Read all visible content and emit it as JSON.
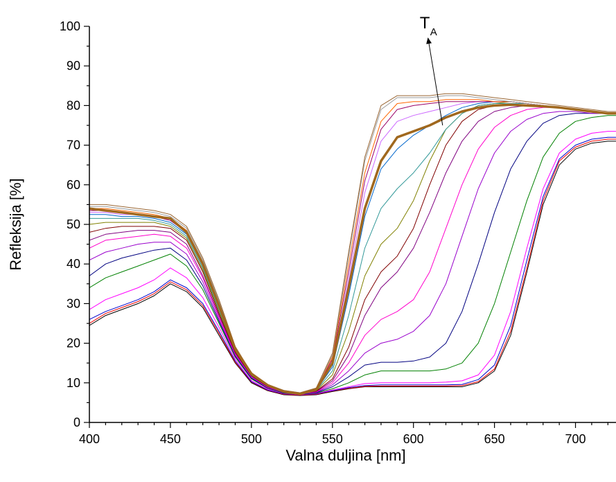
{
  "chart_data": {
    "type": "line",
    "xlabel": "Valna duljina [nm]",
    "ylabel": "Refleksija [%]",
    "xlim": [
      400,
      725
    ],
    "ylim": [
      0,
      100
    ],
    "x_ticks": [
      400,
      450,
      500,
      550,
      600,
      650,
      700
    ],
    "y_ticks": [
      0,
      10,
      20,
      30,
      40,
      50,
      60,
      70,
      80,
      90,
      100
    ],
    "x_minor_step": 10,
    "y_minor_step": 5,
    "grid": false,
    "legend": "none",
    "annotation": {
      "text_main": "T",
      "text_sub": "A",
      "arrow_from": [
        618,
        75
      ],
      "arrow_to": [
        609,
        97
      ]
    },
    "x": [
      400,
      410,
      420,
      430,
      440,
      450,
      460,
      470,
      480,
      490,
      500,
      510,
      520,
      530,
      540,
      550,
      560,
      570,
      580,
      590,
      600,
      610,
      620,
      630,
      640,
      650,
      660,
      670,
      680,
      690,
      700,
      710,
      720,
      725
    ],
    "highlight_index": 16,
    "series": [
      {
        "color": "#000000",
        "width": 1,
        "values": [
          24.5,
          27,
          28.5,
          30,
          32,
          35,
          33,
          29,
          22,
          15,
          10,
          8,
          7,
          6.8,
          7,
          7.8,
          8.5,
          9,
          9,
          9,
          9,
          9,
          9,
          9,
          10,
          13,
          22,
          38,
          55,
          65,
          69,
          70.5,
          71,
          71
        ]
      },
      {
        "color": "#ff0000",
        "width": 1,
        "values": [
          25,
          27.5,
          29,
          30.5,
          32.5,
          35.5,
          33.5,
          29.5,
          22.5,
          15.2,
          10.2,
          8.1,
          7.1,
          6.9,
          7.1,
          7.9,
          8.6,
          9.1,
          9.2,
          9.2,
          9.2,
          9.2,
          9.2,
          9.3,
          10.3,
          13.5,
          23,
          39,
          56,
          66,
          69.5,
          71,
          71.5,
          71.5
        ]
      },
      {
        "color": "#0000cc",
        "width": 1,
        "values": [
          26,
          28,
          29.5,
          31,
          33,
          36,
          34,
          30,
          23,
          15.5,
          10.3,
          8.2,
          7.2,
          7,
          7.2,
          8,
          8.8,
          9.3,
          9.5,
          9.5,
          9.5,
          9.5,
          9.5,
          9.6,
          10.8,
          14.5,
          24.5,
          41,
          57,
          66.5,
          70,
          71.5,
          72,
          72
        ]
      },
      {
        "color": "#ff00ff",
        "width": 1,
        "values": [
          28.5,
          31,
          32.5,
          34,
          36,
          39,
          36.5,
          31.5,
          24,
          16,
          10.6,
          8.4,
          7.3,
          7,
          7.3,
          8.2,
          9,
          9.8,
          10,
          10,
          10,
          10,
          10.2,
          10.5,
          12,
          17,
          28,
          44,
          59,
          68,
          71.5,
          73,
          73.5,
          73.5
        ]
      },
      {
        "color": "#008000",
        "width": 1,
        "values": [
          34,
          36.5,
          38,
          39.5,
          41,
          42.5,
          39.5,
          33.5,
          25,
          16.5,
          11,
          8.6,
          7.4,
          7.1,
          7.4,
          8.5,
          10,
          12,
          13,
          13,
          13,
          13,
          13.5,
          15,
          20,
          30,
          43,
          56,
          67,
          73,
          76,
          77,
          77.5,
          77.5
        ]
      },
      {
        "color": "#000080",
        "width": 1,
        "values": [
          37,
          40,
          41.5,
          42.5,
          43.5,
          44,
          41,
          34.5,
          25.5,
          16.8,
          11.2,
          8.7,
          7.5,
          7.1,
          7.5,
          9,
          11.5,
          14.5,
          15.2,
          15.2,
          15.5,
          16.5,
          20,
          28,
          40,
          53,
          64,
          71,
          75.5,
          77.5,
          78,
          78,
          78,
          78
        ]
      },
      {
        "color": "#9900cc",
        "width": 1,
        "values": [
          41,
          43,
          44,
          45,
          45.5,
          45.5,
          42.5,
          35.5,
          26,
          17,
          11.4,
          8.8,
          7.6,
          7.2,
          7.6,
          9.5,
          13,
          17.5,
          20,
          21,
          23,
          27,
          35,
          47,
          59,
          68,
          73.5,
          76.5,
          78,
          78.5,
          78.5,
          78,
          78,
          78
        ]
      },
      {
        "color": "#ff00cc",
        "width": 1,
        "values": [
          44,
          46,
          46.5,
          47,
          47.5,
          47,
          44,
          36.5,
          26.5,
          17.3,
          11.6,
          8.9,
          7.6,
          7.2,
          7.7,
          10,
          15,
          22,
          26,
          28,
          31,
          38,
          49,
          60,
          69,
          74.5,
          77.5,
          79,
          79.5,
          79.5,
          79,
          78.5,
          78,
          78
        ]
      },
      {
        "color": "#800080",
        "width": 1,
        "values": [
          46,
          47.5,
          48,
          48.5,
          48.5,
          48,
          45,
          37,
          27,
          17.5,
          11.7,
          9,
          7.7,
          7.3,
          7.8,
          10.5,
          17,
          27,
          34,
          38,
          44,
          53,
          63,
          71,
          76,
          78.5,
          79.5,
          80,
          80,
          79.5,
          79,
          78.5,
          78,
          78
        ]
      },
      {
        "color": "#800000",
        "width": 1,
        "values": [
          48,
          49,
          49.5,
          49.5,
          49.5,
          49,
          46,
          38,
          27.5,
          17.8,
          11.8,
          9.1,
          7.8,
          7.3,
          7.9,
          11,
          19,
          31,
          38,
          42,
          49,
          60,
          70,
          76,
          79,
          80,
          80.5,
          80.5,
          80,
          79.5,
          79,
          78.5,
          78,
          78
        ]
      },
      {
        "color": "#808000",
        "width": 1,
        "values": [
          50,
          50.5,
          50.5,
          50.5,
          50.5,
          49.5,
          46.5,
          38.5,
          28,
          18,
          11.9,
          9.2,
          7.8,
          7.3,
          8,
          12,
          23,
          37,
          45,
          49,
          56,
          66,
          74,
          78,
          80,
          80.5,
          81,
          80.5,
          80,
          79.5,
          79,
          78.5,
          78,
          78
        ]
      },
      {
        "color": "#339999",
        "width": 1,
        "values": [
          51.5,
          51.5,
          51.5,
          51.5,
          51,
          50,
          47,
          39,
          28.5,
          18.2,
          12,
          9.3,
          7.9,
          7.3,
          8.1,
          13,
          27,
          44,
          54,
          59,
          63,
          68,
          74,
          78,
          80,
          80.5,
          80.5,
          80.5,
          80,
          79.5,
          79,
          78.5,
          78,
          78
        ]
      },
      {
        "color": "#0066cc",
        "width": 1,
        "values": [
          52.5,
          52.5,
          52,
          52,
          51.5,
          50.5,
          47.5,
          39.5,
          29,
          18.4,
          12.1,
          9.3,
          7.9,
          7.3,
          8.2,
          14,
          32,
          52,
          64,
          69,
          72.5,
          75,
          77.5,
          79.5,
          80.5,
          81,
          81,
          80.5,
          80,
          79.5,
          79,
          78.5,
          78,
          78
        ]
      },
      {
        "color": "#cc66ff",
        "width": 1,
        "values": [
          53,
          53,
          52.5,
          52.5,
          52,
          51,
          48,
          40,
          29.5,
          18.6,
          12.2,
          9.4,
          8,
          7.4,
          8.3,
          15,
          36,
          58,
          71,
          76,
          77.5,
          78.5,
          79.5,
          80.5,
          81,
          81,
          81,
          80.5,
          80,
          79.5,
          79,
          78.5,
          78,
          78
        ]
      },
      {
        "color": "#990066",
        "width": 1,
        "values": [
          53.5,
          53.5,
          53,
          52.5,
          52,
          51,
          48,
          40,
          29.5,
          18.7,
          12.2,
          9.4,
          8,
          7.4,
          8.4,
          16,
          38,
          61,
          74,
          79,
          80,
          80.5,
          81,
          81,
          81,
          81,
          81,
          80.5,
          80,
          79.5,
          79,
          78.5,
          78,
          78
        ]
      },
      {
        "color": "#ff6600",
        "width": 1,
        "values": [
          54,
          54,
          53.5,
          53,
          52.5,
          51.5,
          48.5,
          40.5,
          30,
          18.8,
          12.3,
          9.5,
          8,
          7.4,
          8.5,
          16.5,
          40,
          63,
          76,
          80.5,
          81,
          81,
          81.5,
          81.5,
          81.5,
          81,
          81,
          80.5,
          80,
          79.5,
          79,
          78.5,
          78,
          78
        ]
      },
      {
        "color": "#a0681e",
        "width": 3.5,
        "values": [
          54,
          53.5,
          53,
          52.5,
          52,
          51.5,
          48,
          40,
          29.5,
          18.5,
          12.3,
          9.4,
          7.8,
          7.2,
          8.3,
          15,
          34,
          54,
          66,
          72,
          73.5,
          75,
          77,
          78.5,
          79.5,
          80,
          80.2,
          80,
          79.8,
          79.5,
          79,
          78.5,
          78,
          78
        ]
      },
      {
        "color": "#999999",
        "width": 1,
        "values": [
          54.5,
          54.5,
          54,
          53.5,
          53,
          52,
          49,
          41,
          30.5,
          19,
          12.4,
          9.5,
          8.1,
          7.5,
          8.6,
          17,
          42,
          66,
          79,
          82,
          82,
          82,
          82.5,
          82.5,
          82,
          81.5,
          81,
          80.5,
          80,
          79.5,
          79,
          78.5,
          78,
          78
        ]
      },
      {
        "color": "#996633",
        "width": 1,
        "values": [
          55,
          55,
          54.5,
          54,
          53.5,
          52.5,
          49.5,
          41.5,
          31,
          19.2,
          12.5,
          9.6,
          8.1,
          7.5,
          8.7,
          17.5,
          43,
          67,
          80,
          82.5,
          82.5,
          82.5,
          83,
          83,
          82.5,
          82,
          81.5,
          81,
          80.5,
          80,
          79.5,
          79,
          78.5,
          78.5
        ]
      }
    ]
  }
}
